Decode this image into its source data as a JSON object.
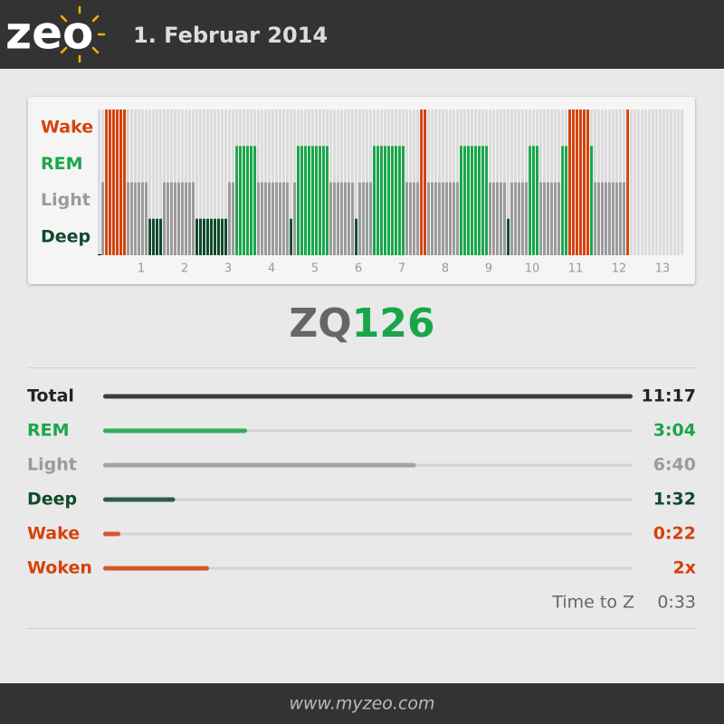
{
  "header": {
    "logo": "zeo",
    "date": "1. Februar 2014"
  },
  "hypnogram": {
    "stages": [
      "Wake",
      "REM",
      "Light",
      "Deep"
    ],
    "colors": {
      "Wake": "#d5420c",
      "REM": "#19a64a",
      "Light": "#9b9b9b",
      "Deep": "#0e4a2b"
    },
    "xlim": [
      0,
      13.5
    ],
    "xticks": [
      1,
      2,
      3,
      4,
      5,
      6,
      7,
      8,
      9,
      10,
      11,
      12,
      13
    ],
    "segments": [
      {
        "start": 0.08,
        "stage": "Light"
      },
      {
        "start": 0.17,
        "stage": "Wake"
      },
      {
        "start": 0.67,
        "stage": "Light"
      },
      {
        "start": 1.17,
        "stage": "Deep"
      },
      {
        "start": 1.5,
        "stage": "Light"
      },
      {
        "start": 2.25,
        "stage": "Deep"
      },
      {
        "start": 3.0,
        "stage": "Light"
      },
      {
        "start": 3.17,
        "stage": "REM"
      },
      {
        "start": 3.67,
        "stage": "Light"
      },
      {
        "start": 4.42,
        "stage": "Deep"
      },
      {
        "start": 4.5,
        "stage": "Light"
      },
      {
        "start": 4.58,
        "stage": "REM"
      },
      {
        "start": 5.33,
        "stage": "Light"
      },
      {
        "start": 5.92,
        "stage": "Deep"
      },
      {
        "start": 6.0,
        "stage": "Light"
      },
      {
        "start": 6.33,
        "stage": "REM"
      },
      {
        "start": 7.08,
        "stage": "Light"
      },
      {
        "start": 7.42,
        "stage": "Wake"
      },
      {
        "start": 7.58,
        "stage": "Light"
      },
      {
        "start": 8.33,
        "stage": "REM"
      },
      {
        "start": 9.0,
        "stage": "Light"
      },
      {
        "start": 9.42,
        "stage": "Deep"
      },
      {
        "start": 9.5,
        "stage": "Light"
      },
      {
        "start": 9.92,
        "stage": "REM"
      },
      {
        "start": 10.17,
        "stage": "Light"
      },
      {
        "start": 10.67,
        "stage": "REM"
      },
      {
        "start": 10.83,
        "stage": "Wake"
      },
      {
        "start": 11.33,
        "stage": "REM"
      },
      {
        "start": 11.42,
        "stage": "Light"
      },
      {
        "start": 12.17,
        "stage": "Wake"
      }
    ],
    "end": 12.25
  },
  "score": {
    "label": "ZQ",
    "value": 126
  },
  "stats": [
    {
      "label": "Total",
      "value_label": "11:17",
      "value": 677,
      "color": "#222222",
      "kind": "time"
    },
    {
      "label": "REM",
      "value_label": "3:04",
      "value": 184,
      "color": "#19a64a",
      "kind": "time"
    },
    {
      "label": "Light",
      "value_label": "6:40",
      "value": 400,
      "color": "#9b9b9b",
      "kind": "time"
    },
    {
      "label": "Deep",
      "value_label": "1:32",
      "value": 92,
      "color": "#0e4a2b",
      "kind": "time"
    },
    {
      "label": "Wake",
      "value_label": "0:22",
      "value": 22,
      "color": "#d5420c",
      "kind": "time"
    },
    {
      "label": "Woken",
      "value_label": "2x",
      "value": 2,
      "color": "#d5420c",
      "kind": "count"
    }
  ],
  "time_to_z": {
    "label": "Time to Z",
    "value": "0:33"
  },
  "footer": "www.myzeo.com"
}
